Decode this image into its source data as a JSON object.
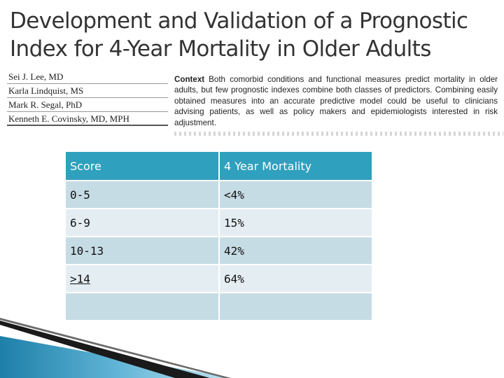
{
  "title": "Development and Validation of a Prognostic Index for 4-Year Mortality in Older Adults",
  "authors": [
    "Sei J. Lee, MD",
    "Karla Lindquist, MS",
    "Mark R. Segal, PhD",
    "Kenneth E. Covinsky, MD, MPH"
  ],
  "context": {
    "label": "Context",
    "text": "Both comorbid conditions and functional measures predict mortality in older adults, but few prognostic indexes combine both classes of predictors. Combining easily obtained measures into an accurate predictive model could be useful to clinicians advising patients, as well as policy makers and epidemiologists interested in risk adjustment."
  },
  "table": {
    "headers": [
      "Score",
      "4 Year Mortality"
    ],
    "rows": [
      [
        "0-5",
        "<4%"
      ],
      [
        "6-9",
        "15%"
      ],
      [
        "10-13",
        "42%"
      ],
      [
        ">14",
        "64%"
      ],
      [
        "",
        ""
      ]
    ]
  },
  "colors": {
    "header": "#2fa0bd",
    "row_odd": "#c6dce5",
    "row_even": "#e4eef2",
    "deco_blue": "#1e7fa8"
  }
}
